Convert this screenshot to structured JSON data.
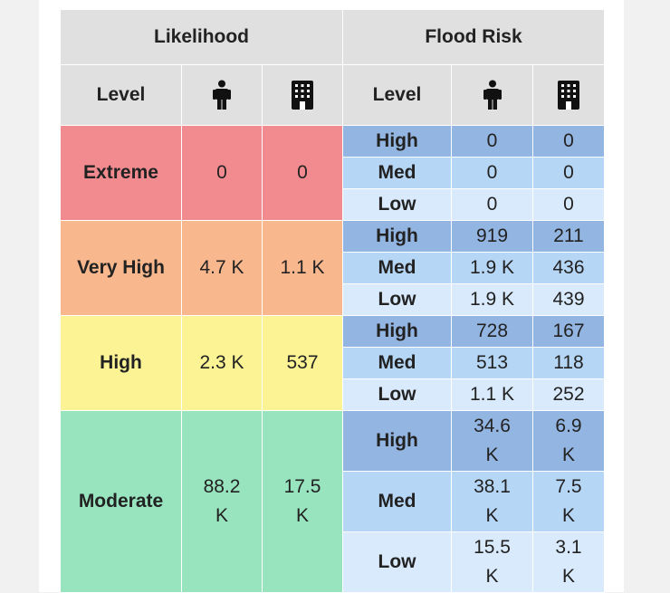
{
  "headers": {
    "likelihood": "Likelihood",
    "flood_risk": "Flood Risk",
    "level_left": "Level",
    "level_right": "Level",
    "person_icon": "person-icon",
    "building_icon": "building-icon"
  },
  "colors": {
    "extreme": "#f28b8f",
    "very_high": "#f9b78d",
    "high": "#fbf394",
    "moderate": "#98e4bf",
    "flood_high": "#93b5e2",
    "flood_med": "#b6d6f6",
    "flood_low": "#d8eafb"
  },
  "groups": [
    {
      "level": "Extreme",
      "people": "0",
      "buildings": "0",
      "rows": [
        {
          "level": "High",
          "people": "0",
          "buildings": "0"
        },
        {
          "level": "Med",
          "people": "0",
          "buildings": "0"
        },
        {
          "level": "Low",
          "people": "0",
          "buildings": "0"
        }
      ]
    },
    {
      "level": "Very High",
      "people": "4.7 K",
      "buildings": "1.1 K",
      "rows": [
        {
          "level": "High",
          "people": "919",
          "buildings": "211"
        },
        {
          "level": "Med",
          "people": "1.9 K",
          "buildings": "436"
        },
        {
          "level": "Low",
          "people": "1.9 K",
          "buildings": "439"
        }
      ]
    },
    {
      "level": "High",
      "people": "2.3 K",
      "buildings": "537",
      "rows": [
        {
          "level": "High",
          "people": "728",
          "buildings": "167"
        },
        {
          "level": "Med",
          "people": "513",
          "buildings": "118"
        },
        {
          "level": "Low",
          "people": "1.1 K",
          "buildings": "252"
        }
      ]
    },
    {
      "level": "Moderate",
      "people": "88.2 K",
      "buildings": "17.5 K",
      "rows": [
        {
          "level": "High",
          "people": "34.6 K",
          "buildings": "6.9 K"
        },
        {
          "level": "Med",
          "people": "38.1 K",
          "buildings": "7.5 K"
        },
        {
          "level": "Low",
          "people": "15.5 K",
          "buildings": "3.1 K"
        }
      ]
    }
  ]
}
